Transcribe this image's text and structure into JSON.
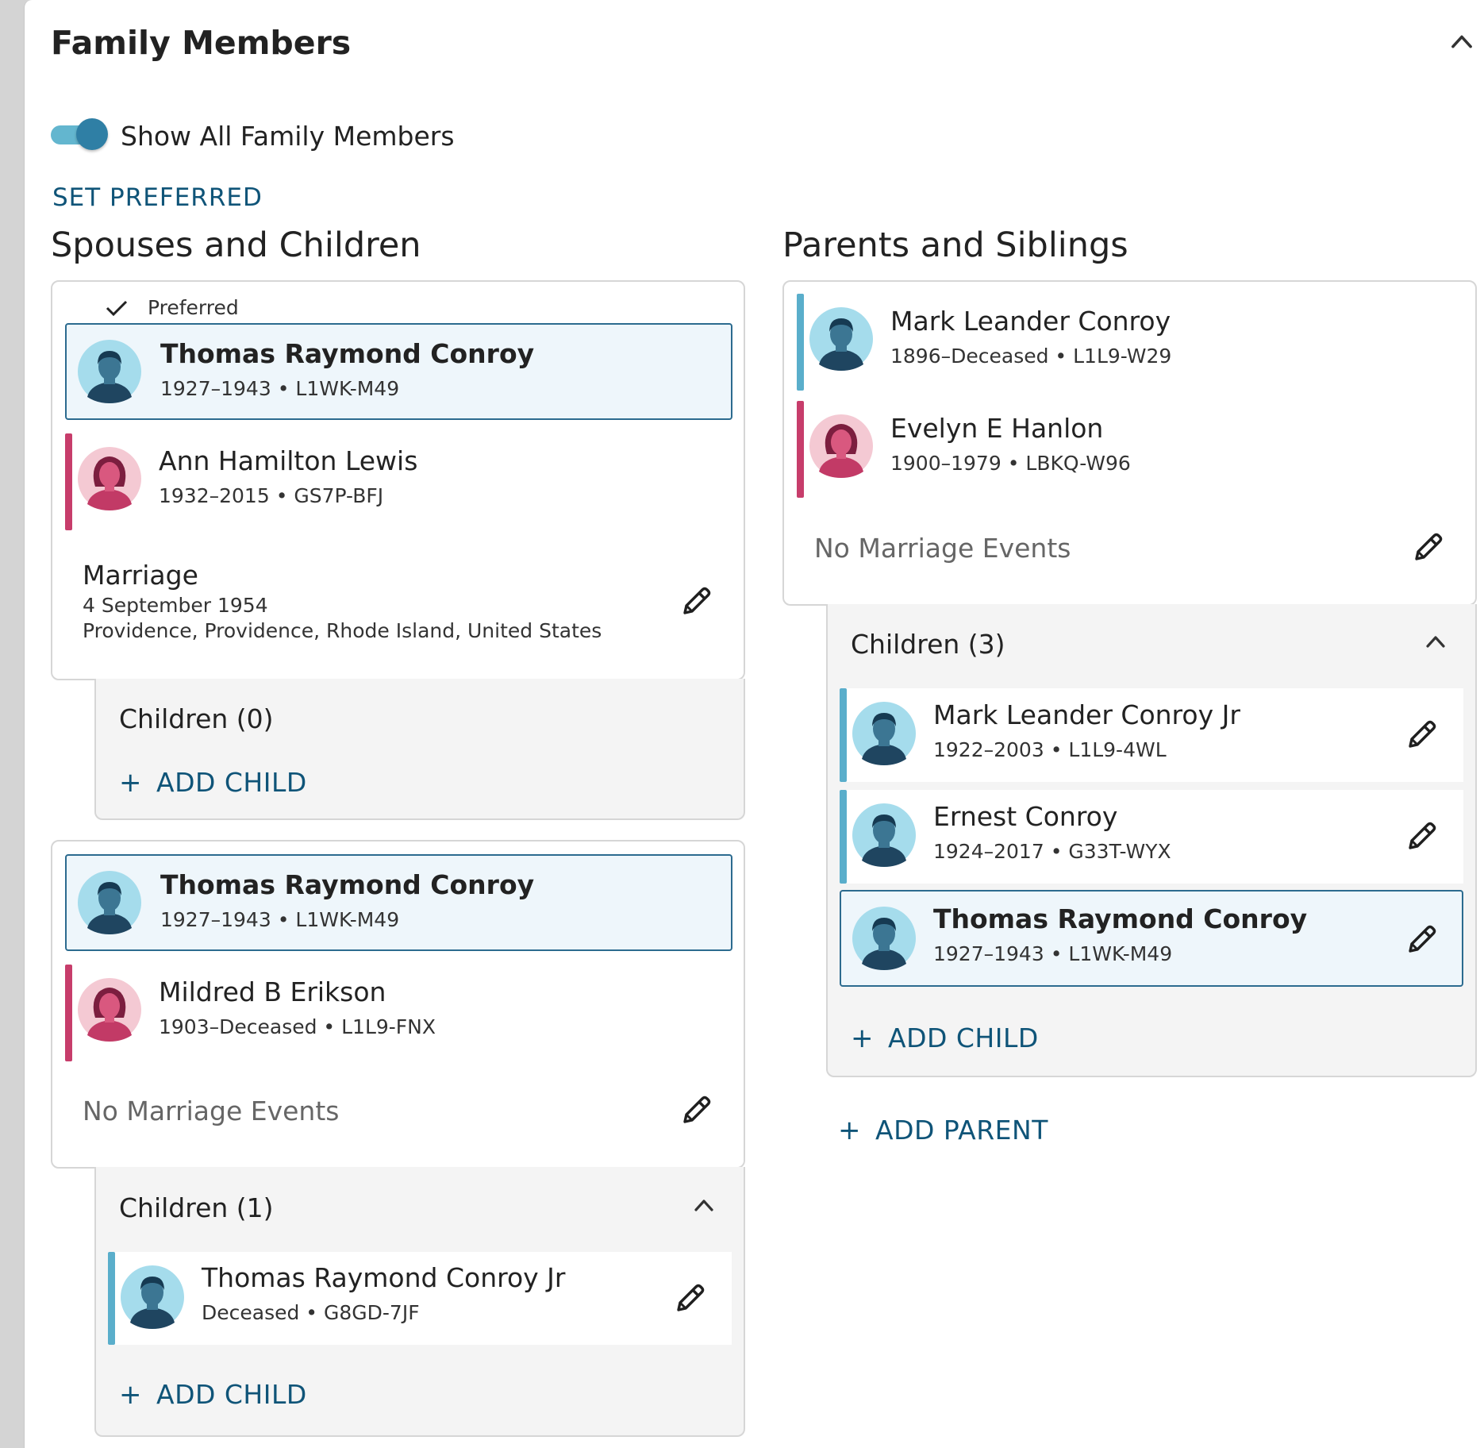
{
  "panel": {
    "title": "Family Members"
  },
  "toggle": {
    "label": "Show All Family Members",
    "on": true
  },
  "set_preferred": "SET PREFERRED",
  "spouses_section": {
    "title": "Spouses and Children",
    "preferred_label": "Preferred",
    "families": [
      {
        "husband": {
          "name": "Thomas Raymond Conroy",
          "info": "1927–1943 • L1WK-M49"
        },
        "wife": {
          "name": "Ann Hamilton Lewis",
          "info": "1932–2015 • GS7P-BFJ"
        },
        "event": {
          "title": "Marriage",
          "date": "4 September 1954",
          "place": "Providence, Providence, Rhode Island, United States"
        },
        "children_title": "Children (0)",
        "add_child": "ADD CHILD"
      },
      {
        "husband": {
          "name": "Thomas Raymond Conroy",
          "info": "1927–1943 • L1WK-M49"
        },
        "wife": {
          "name": "Mildred B Erikson",
          "info": "1903–Deceased • L1L9-FNX"
        },
        "no_events": "No Marriage Events",
        "children_title": "Children (1)",
        "children": [
          {
            "name": "Thomas Raymond Conroy Jr",
            "info": "Deceased • G8GD-7JF"
          }
        ],
        "add_child": "ADD CHILD"
      }
    ]
  },
  "parents_section": {
    "title": "Parents and Siblings",
    "father": {
      "name": "Mark Leander Conroy",
      "info": "1896–Deceased • L1L9-W29"
    },
    "mother": {
      "name": "Evelyn E Hanlon",
      "info": "1900–1979 • LBKQ-W96"
    },
    "no_events": "No Marriage Events",
    "children_title": "Children (3)",
    "children": [
      {
        "name": "Mark Leander Conroy Jr",
        "info": "1922–2003 • L1L9-4WL"
      },
      {
        "name": "Ernest Conroy",
        "info": "1924–2017 • G33T-WYX"
      },
      {
        "name": "Thomas Raymond Conroy",
        "info": "1927–1943 • L1WK-M49"
      }
    ],
    "add_child": "ADD CHILD",
    "add_parent": "ADD PARENT"
  },
  "icons": {
    "collapse": "chevron-up-icon",
    "edit": "pencil-icon",
    "check": "check-icon",
    "male": "male-avatar-icon",
    "female": "female-avatar-icon"
  },
  "colors": {
    "accent": "#0f5478",
    "male_bar": "#5aaecb",
    "female_bar": "#c73d6b",
    "selected_bg": "#eef6fb",
    "selected_border": "#2c6b8f"
  }
}
